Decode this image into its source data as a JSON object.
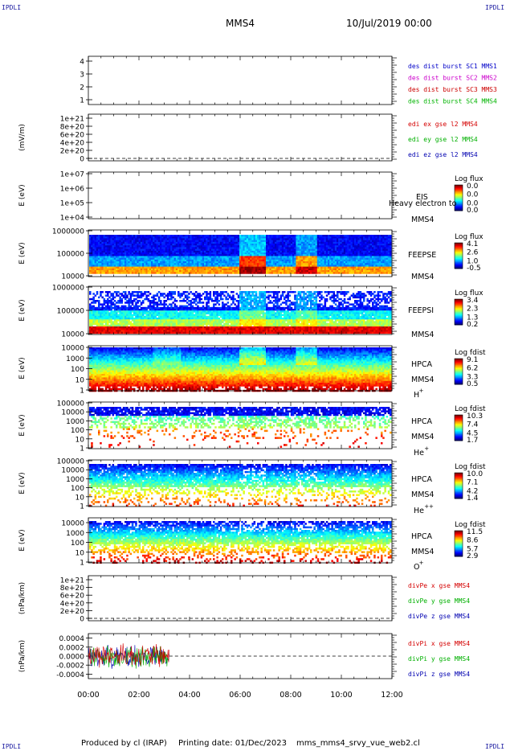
{
  "header": {
    "corner_label": "IPDLI",
    "spacecraft": "MMS4",
    "date": "10/Jul/2019 00:00"
  },
  "footer": {
    "produced_by": "Produced by cl (IRAP)",
    "printing_date": "Printing date: 01/Dec/2023",
    "script_name": "mms_mms4_srvy_vue_web2.cl"
  },
  "colors": {
    "mms1": "#0000c8",
    "mms2": "#cc00cc",
    "mms3": "#cc0000",
    "mms4": "#00b400",
    "red": "#d40000",
    "green": "#00b000",
    "blue": "#0000b0"
  },
  "time_axis": {
    "ticks": [
      "00:00",
      "02:00",
      "04:00",
      "06:00",
      "08:00",
      "10:00",
      "12:00"
    ],
    "range_hours": [
      0,
      12
    ]
  },
  "chart_data": [
    {
      "id": "burst",
      "type": "line",
      "yticks": [
        "4",
        "3",
        "2",
        "1"
      ],
      "ylim": [
        0.6,
        4.4
      ],
      "legend": [
        {
          "text": "des dist burst SC1 MMS1",
          "color": "#0000c8"
        },
        {
          "text": "des dist burst SC2 MMS2",
          "color": "#cc00cc"
        },
        {
          "text": "des dist burst SC3 MMS3",
          "color": "#cc0000"
        },
        {
          "text": "des dist burst SC4 MMS4",
          "color": "#00b400"
        }
      ]
    },
    {
      "id": "edi",
      "type": "line",
      "ylabel": "(mV/m)",
      "yticks": [
        "1e+21",
        "8e+20",
        "6e+20",
        "4e+20",
        "2e+20",
        "0"
      ],
      "legend": [
        {
          "text": "edi ex gse l2 MMS4",
          "color": "#d40000"
        },
        {
          "text": "edi ey gse l2 MMS4",
          "color": "#00b000"
        },
        {
          "text": "edi ez gse l2 MMS4",
          "color": "#0000b0"
        }
      ]
    },
    {
      "id": "eis",
      "type": "heatmap",
      "ylabel": "E (eV)",
      "yticks": [
        "1e+07",
        "1e+06",
        "1e+05",
        "1e+04"
      ],
      "instrument": "EIS",
      "instrument_sub": "Heavy electron to",
      "sc": "MMS4",
      "cbar_title": "Log flux",
      "cbar_values": [
        "0.0",
        "0.0",
        "0.0",
        "0.0"
      ]
    },
    {
      "id": "feepse",
      "type": "heatmap",
      "ylabel": "E (eV)",
      "yticks": [
        "1000000",
        "100000",
        "10000"
      ],
      "instrument": "FEEPSE",
      "sc": "MMS4",
      "cbar_title": "Log flux",
      "cbar_values": [
        "4.1",
        "2.6",
        "1.0",
        "-0.5"
      ]
    },
    {
      "id": "feepsi",
      "type": "heatmap",
      "ylabel": "E (eV)",
      "yticks": [
        "1000000",
        "100000",
        "10000"
      ],
      "instrument": "FEEPSI",
      "sc": "MMS4",
      "cbar_title": "Log flux",
      "cbar_values": [
        "3.4",
        "2.3",
        "1.3",
        "0.2"
      ]
    },
    {
      "id": "hpca_h",
      "type": "heatmap",
      "ylabel": "E (eV)",
      "yticks": [
        "10000",
        "1000",
        "100",
        "10",
        "1"
      ],
      "instrument": "HPCA",
      "sc": "MMS4",
      "species": "H",
      "charge": "+",
      "cbar_title": "Log fdist",
      "cbar_values": [
        "9.1",
        "6.2",
        "3.3",
        "0.5"
      ]
    },
    {
      "id": "hpca_he1",
      "type": "heatmap",
      "ylabel": "E (eV)",
      "yticks": [
        "100000",
        "10000",
        "1000",
        "100",
        "10",
        "1"
      ],
      "instrument": "HPCA",
      "sc": "MMS4",
      "species": "He",
      "charge": "+",
      "cbar_title": "Log fdist",
      "cbar_values": [
        "10.3",
        "7.4",
        "4.5",
        "1.7"
      ]
    },
    {
      "id": "hpca_he2",
      "type": "heatmap",
      "ylabel": "E (eV)",
      "yticks": [
        "100000",
        "10000",
        "1000",
        "100",
        "10",
        "1"
      ],
      "instrument": "HPCA",
      "sc": "MMS4",
      "species": "He",
      "charge": "++",
      "cbar_title": "Log fdist",
      "cbar_values": [
        "10.0",
        "7.1",
        "4.2",
        "1.4"
      ]
    },
    {
      "id": "hpca_o",
      "type": "heatmap",
      "ylabel": "E (eV)",
      "yticks": [
        "10000",
        "1000",
        "100",
        "10",
        "1"
      ],
      "instrument": "HPCA",
      "sc": "MMS4",
      "species": "O",
      "charge": "+",
      "cbar_title": "Log fdist",
      "cbar_values": [
        "11.5",
        "8.6",
        "5.7",
        "2.9"
      ]
    },
    {
      "id": "divpe",
      "type": "line",
      "ylabel": "(nPa/km)",
      "yticks": [
        "1e+21",
        "8e+20",
        "6e+20",
        "4e+20",
        "2e+20",
        "0"
      ],
      "legend": [
        {
          "text": "divPe x gse MMS4",
          "color": "#d40000"
        },
        {
          "text": "divPe y gse MMS4",
          "color": "#00b000"
        },
        {
          "text": "divPe z gse MMS4",
          "color": "#0000b0"
        }
      ]
    },
    {
      "id": "divpi",
      "type": "line",
      "ylabel": "(nPa/km)",
      "yticks": [
        "0.0004",
        "0.0002",
        "0.0000",
        "-0.0002",
        "-0.0004"
      ],
      "ylim": [
        -0.0005,
        0.0005
      ],
      "data_end_hour": 3.2,
      "amplitude": 0.0002,
      "legend": [
        {
          "text": "divPi x gse MMS4",
          "color": "#d40000"
        },
        {
          "text": "divPi y gse MMS4",
          "color": "#00b000"
        },
        {
          "text": "divPi z gse MMS4",
          "color": "#0000b0"
        }
      ]
    }
  ]
}
